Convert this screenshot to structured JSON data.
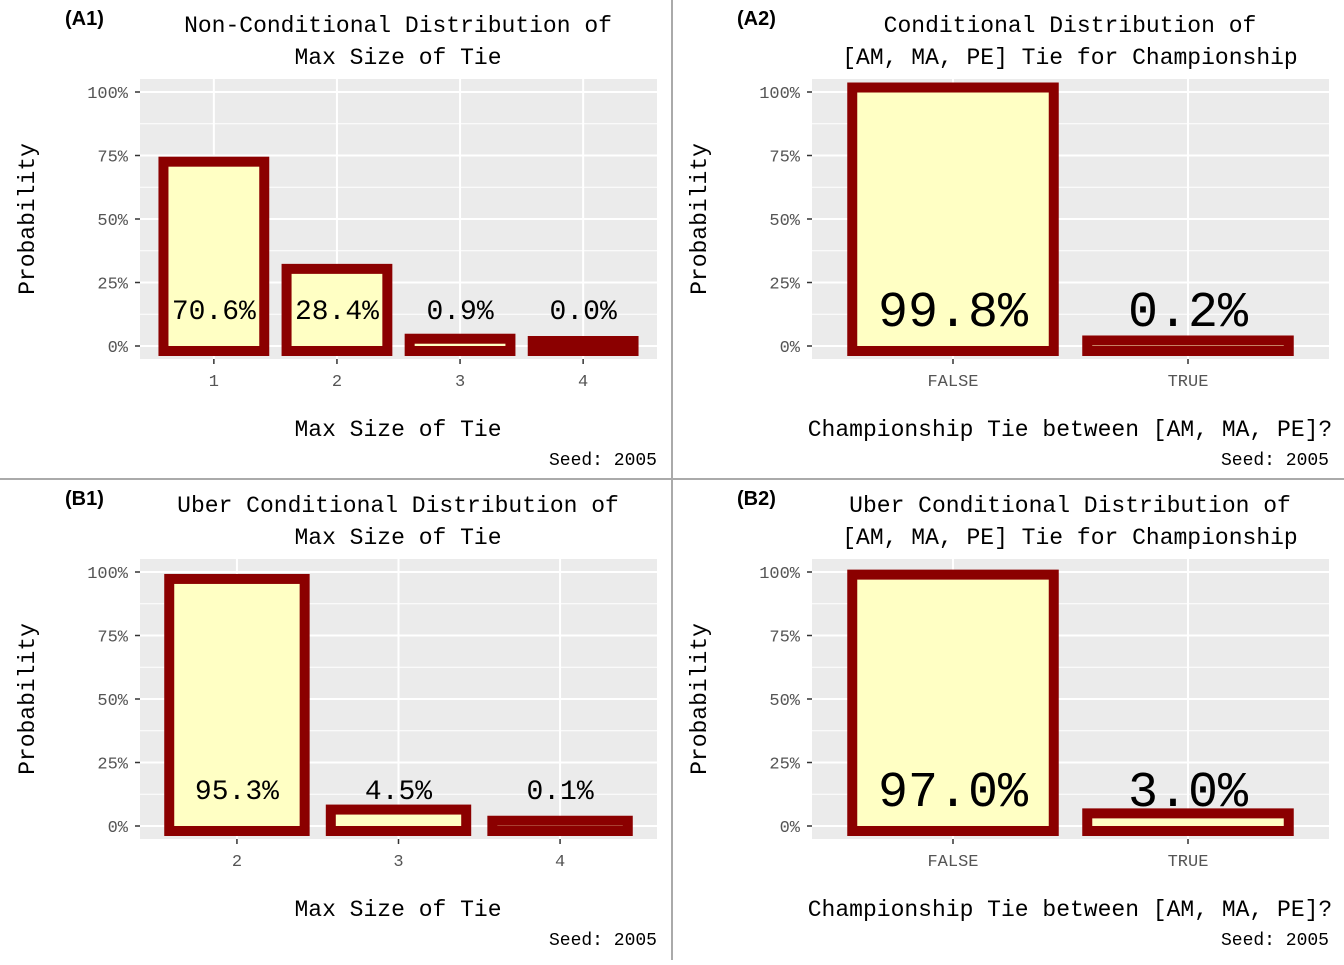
{
  "chart_data": [
    {
      "type": "bar",
      "panel_tag": "(A1)",
      "title": [
        "Non-Conditional Distribution of",
        "Max Size of Tie"
      ],
      "xlabel": "Max Size of Tie",
      "ylabel": "Probability",
      "categories": [
        "1",
        "2",
        "3",
        "4"
      ],
      "values": [
        70.6,
        28.4,
        0.9,
        0.0
      ],
      "data_labels": [
        "70.6%",
        "28.4%",
        "0.9%",
        "0.0%"
      ],
      "yticks": [
        "0%",
        "25%",
        "50%",
        "75%",
        "100%"
      ],
      "ylim": [
        0,
        100
      ],
      "caption": "Seed: 2005",
      "grid": true
    },
    {
      "type": "bar",
      "panel_tag": "(A2)",
      "title": [
        "Conditional Distribution of",
        "[AM, MA, PE] Tie for Championship"
      ],
      "xlabel": "Championship Tie between [AM, MA, PE]?",
      "ylabel": "Probability",
      "categories": [
        "FALSE",
        "TRUE"
      ],
      "values": [
        99.8,
        0.2
      ],
      "data_labels": [
        "99.8%",
        "0.2%"
      ],
      "yticks": [
        "0%",
        "25%",
        "50%",
        "75%",
        "100%"
      ],
      "ylim": [
        0,
        100
      ],
      "caption": "Seed: 2005",
      "grid": true
    },
    {
      "type": "bar",
      "panel_tag": "(B1)",
      "title": [
        "Uber Conditional Distribution of",
        "Max Size of Tie"
      ],
      "xlabel": "Max Size of Tie",
      "ylabel": "Probability",
      "categories": [
        "2",
        "3",
        "4"
      ],
      "values": [
        95.3,
        4.5,
        0.1
      ],
      "data_labels": [
        "95.3%",
        "4.5%",
        "0.1%"
      ],
      "yticks": [
        "0%",
        "25%",
        "50%",
        "75%",
        "100%"
      ],
      "ylim": [
        0,
        100
      ],
      "caption": "Seed: 2005",
      "grid": true
    },
    {
      "type": "bar",
      "panel_tag": "(B2)",
      "title": [
        "Uber Conditional Distribution of",
        "[AM, MA, PE] Tie for Championship"
      ],
      "xlabel": "Championship Tie between [AM, MA, PE]?",
      "ylabel": "Probability",
      "categories": [
        "FALSE",
        "TRUE"
      ],
      "values": [
        97.0,
        3.0
      ],
      "data_labels": [
        "97.0%",
        "3.0%"
      ],
      "yticks": [
        "0%",
        "25%",
        "50%",
        "75%",
        "100%"
      ],
      "ylim": [
        0,
        100
      ],
      "caption": "Seed: 2005",
      "grid": true
    }
  ],
  "colors": {
    "bar_fill": "#FFFFC4",
    "bar_outline": "#8B0000",
    "panel_bg": "#EBEBEB",
    "grid": "#FFFFFF"
  }
}
